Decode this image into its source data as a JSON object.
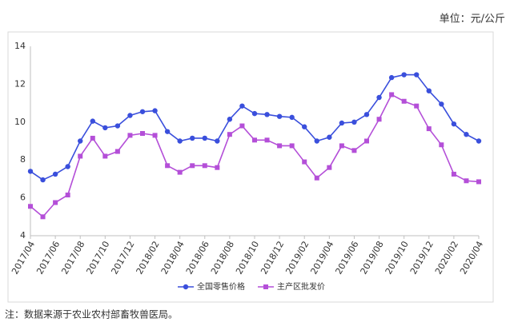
{
  "chart_data": {
    "type": "line",
    "unit_label": "单位：元/公斤",
    "note": "注：数据来源于农业农村部畜牧兽医局。",
    "categories": [
      "2017/04",
      null,
      "2017/06",
      null,
      "2017/08",
      null,
      "2017/10",
      null,
      "2017/12",
      null,
      "2018/02",
      null,
      "2018/04",
      null,
      "2018/06",
      null,
      "2018/08",
      null,
      "2018/10",
      null,
      "2018/12",
      null,
      "2019/02",
      null,
      "2019/04",
      null,
      "2019/06",
      null,
      "2019/08",
      null,
      "2019/10",
      null,
      "2019/12",
      null,
      "2020/02",
      null,
      "2020/04"
    ],
    "series": [
      {
        "name": "全国零售价格",
        "color": "#3a4fdc",
        "marker": "circle",
        "values": [
          7.4,
          6.95,
          7.25,
          7.65,
          9.0,
          10.05,
          9.7,
          9.8,
          10.35,
          10.55,
          10.6,
          9.5,
          9.0,
          9.15,
          9.15,
          9.0,
          10.15,
          10.85,
          10.45,
          10.4,
          10.3,
          10.25,
          9.75,
          9.0,
          9.2,
          9.95,
          10.0,
          10.4,
          11.3,
          12.35,
          12.5,
          12.5,
          11.65,
          10.95,
          9.9,
          9.35,
          9.0
        ]
      },
      {
        "name": "主产区批发价",
        "color": "#b44fd8",
        "marker": "square",
        "values": [
          5.55,
          5.0,
          5.75,
          6.15,
          8.2,
          9.15,
          8.2,
          8.45,
          9.3,
          9.4,
          9.3,
          7.7,
          7.35,
          7.7,
          7.7,
          7.6,
          9.35,
          9.8,
          9.05,
          9.05,
          8.75,
          8.75,
          7.9,
          7.05,
          7.6,
          8.75,
          8.5,
          9.0,
          10.15,
          11.45,
          11.1,
          10.85,
          9.65,
          8.8,
          7.25,
          6.9,
          6.85
        ]
      }
    ],
    "ylim": [
      4,
      14
    ],
    "yticks": [
      4,
      6,
      8,
      10,
      12,
      14
    ],
    "grid": false
  }
}
